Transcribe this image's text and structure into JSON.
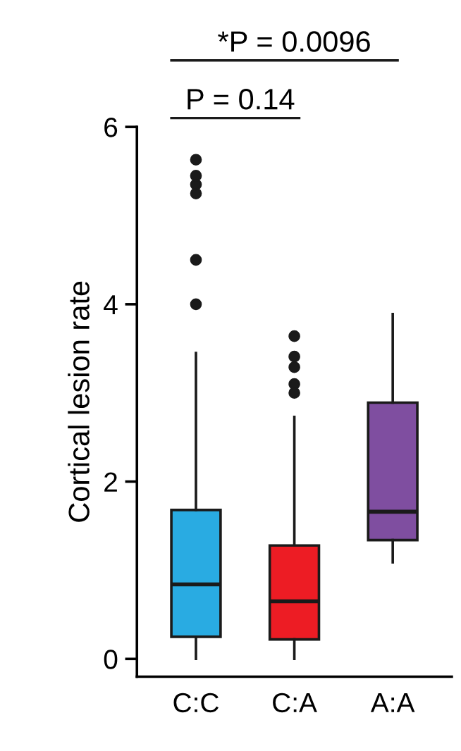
{
  "chart_data": {
    "type": "box",
    "ylabel": "Cortical lesion rate",
    "categories": [
      "C:C",
      "C:A",
      "A:A"
    ],
    "colors": [
      "#29abe2",
      "#ed1c24",
      "#7f4ea0"
    ],
    "boxes": [
      {
        "low": 0,
        "q1": 0.25,
        "median": 0.84,
        "q3": 1.68,
        "high": 3.45,
        "outliers": [
          4.0,
          4.5,
          5.25,
          5.35,
          5.45,
          5.63
        ]
      },
      {
        "low": 0,
        "q1": 0.22,
        "median": 0.65,
        "q3": 1.28,
        "high": 2.73,
        "outliers": [
          3.0,
          3.1,
          3.29,
          3.41,
          3.64
        ]
      },
      {
        "low": 1.09,
        "q1": 1.34,
        "median": 1.66,
        "q3": 2.89,
        "high": 3.89
      }
    ],
    "ylim": [
      -0.2,
      6
    ],
    "yticks": [
      0,
      2,
      4,
      6
    ],
    "grid": false,
    "annotations": [
      "P = 0.14",
      "*P = 0.0096"
    ]
  }
}
